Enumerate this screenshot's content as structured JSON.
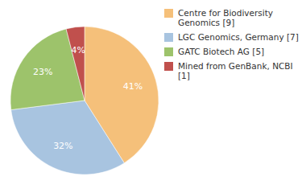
{
  "chart_data": {
    "type": "pie",
    "categories": [
      "Centre for Biodiversity\nGenomics [9]",
      "LGC Genomics, Germany [7]",
      "GATC Biotech AG [5]",
      "Mined from GenBank, NCBI [1]"
    ],
    "values": [
      41,
      32,
      23,
      4
    ],
    "value_labels": [
      "41%",
      "32%",
      "23%",
      "4%"
    ],
    "colors": [
      "#f5c07a",
      "#a8c4e0",
      "#9dc36b",
      "#c0504d"
    ],
    "data_labels": true,
    "legend": "upper right"
  }
}
